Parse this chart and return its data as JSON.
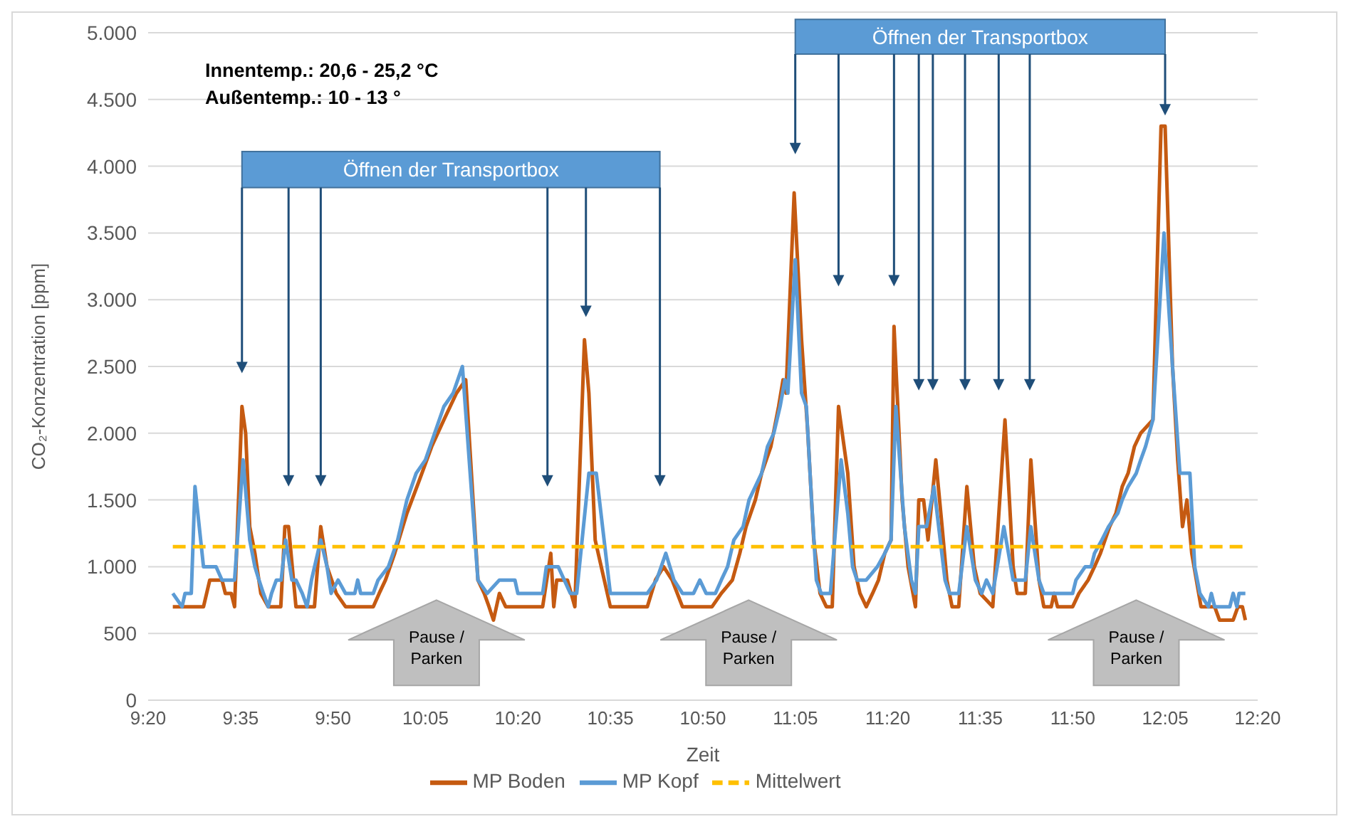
{
  "chart_data": {
    "type": "line",
    "xlabel": "Zeit",
    "ylabel": "CO₂-Konzentration [ppm]",
    "xlim": [
      9.3333,
      12.3333
    ],
    "xticks": [
      {
        "value": 9.3333,
        "label": "9:20"
      },
      {
        "value": 9.5833,
        "label": "9:35"
      },
      {
        "value": 9.8333,
        "label": "9:50"
      },
      {
        "value": 10.0833,
        "label": "10:05"
      },
      {
        "value": 10.3333,
        "label": "10:20"
      },
      {
        "value": 10.5833,
        "label": "10:35"
      },
      {
        "value": 10.8333,
        "label": "10:50"
      },
      {
        "value": 11.0833,
        "label": "11:05"
      },
      {
        "value": 11.3333,
        "label": "11:20"
      },
      {
        "value": 11.5833,
        "label": "11:35"
      },
      {
        "value": 11.8333,
        "label": "11:50"
      },
      {
        "value": 12.0833,
        "label": "12:05"
      },
      {
        "value": 12.3333,
        "label": "12:20"
      }
    ],
    "ylim": [
      0,
      5000
    ],
    "yticks": [
      0,
      500,
      {
        "value": 1000,
        "label": "1.000"
      },
      {
        "value": 1500,
        "label": "1.500"
      },
      {
        "value": 2000,
        "label": "2.000"
      },
      {
        "value": 2500,
        "label": "2.500"
      },
      {
        "value": 3000,
        "label": "3.000"
      },
      {
        "value": 3500,
        "label": "3.500"
      },
      {
        "value": 4000,
        "label": "4.000"
      },
      {
        "value": 4500,
        "label": "4.500"
      },
      {
        "value": 5000,
        "label": "5.000"
      }
    ],
    "grid": "y",
    "legend": "bottom",
    "series": [
      {
        "name": "MP Boden",
        "color": "#c55a11",
        "x": [
          9.4,
          9.483,
          9.5,
          9.533,
          9.542,
          9.558,
          9.567,
          9.587,
          9.597,
          9.608,
          9.622,
          9.638,
          9.658,
          9.692,
          9.703,
          9.713,
          9.733,
          9.783,
          9.8,
          9.817,
          9.842,
          9.867,
          9.942,
          9.958,
          9.975,
          10.0,
          10.033,
          10.067,
          10.1,
          10.133,
          10.167,
          10.192,
          10.225,
          10.242,
          10.255,
          10.267,
          10.283,
          10.3,
          10.4,
          10.422,
          10.43,
          10.438,
          10.467,
          10.487,
          10.513,
          10.525,
          10.542,
          10.583,
          10.683,
          10.705,
          10.727,
          10.75,
          10.778,
          10.858,
          10.883,
          10.913,
          10.933,
          10.95,
          10.975,
          10.992,
          11.017,
          11.038,
          11.05,
          11.058,
          11.08,
          11.1,
          11.117,
          11.133,
          11.15,
          11.167,
          11.183,
          11.2,
          11.225,
          11.242,
          11.258,
          11.275,
          11.292,
          11.308,
          11.325,
          11.342,
          11.35,
          11.372,
          11.388,
          11.408,
          11.417,
          11.43,
          11.442,
          11.463,
          11.48,
          11.493,
          11.507,
          11.525,
          11.547,
          11.567,
          11.583,
          11.617,
          11.65,
          11.672,
          11.683,
          11.705,
          11.72,
          11.742,
          11.755,
          11.775,
          11.783,
          11.792,
          11.833,
          11.85,
          11.875,
          11.892,
          11.908,
          11.933,
          11.95,
          11.967,
          11.983,
          12.0,
          12.017,
          12.05,
          12.072,
          12.083,
          12.103,
          12.117,
          12.13,
          12.142,
          12.155,
          12.18,
          12.217,
          12.23,
          12.267,
          12.28,
          12.292,
          12.3
        ],
        "values": [
          700,
          700,
          900,
          900,
          800,
          800,
          700,
          2200,
          2000,
          1300,
          1100,
          800,
          700,
          700,
          1300,
          1300,
          700,
          700,
          1300,
          1000,
          800,
          700,
          700,
          800,
          900,
          1100,
          1400,
          1650,
          1900,
          2100,
          2300,
          2400,
          900,
          800,
          700,
          600,
          800,
          700,
          700,
          1100,
          700,
          900,
          900,
          700,
          2700,
          2300,
          1200,
          700,
          700,
          900,
          1000,
          900,
          700,
          700,
          800,
          900,
          1100,
          1300,
          1500,
          1700,
          1900,
          2200,
          2400,
          2300,
          3800,
          2700,
          2000,
          1200,
          800,
          700,
          700,
          2200,
          1700,
          1000,
          800,
          700,
          800,
          900,
          1100,
          1200,
          2800,
          1500,
          1000,
          700,
          1500,
          1500,
          1200,
          1800,
          1300,
          900,
          700,
          700,
          1600,
          1000,
          800,
          700,
          2100,
          1000,
          800,
          800,
          1800,
          900,
          700,
          700,
          800,
          700,
          700,
          800,
          900,
          1000,
          1100,
          1300,
          1400,
          1600,
          1700,
          1900,
          2000,
          2100,
          4300,
          4300,
          2500,
          1800,
          1300,
          1500,
          1100,
          700,
          700,
          600,
          600,
          700,
          700,
          600
        ]
      },
      {
        "name": "MP Kopf",
        "color": "#5b9bd5",
        "x": [
          9.4,
          9.425,
          9.433,
          9.45,
          9.46,
          9.483,
          9.517,
          9.533,
          9.567,
          9.59,
          9.608,
          9.622,
          9.633,
          9.645,
          9.658,
          9.667,
          9.68,
          9.693,
          9.705,
          9.722,
          9.733,
          9.75,
          9.763,
          9.775,
          9.8,
          9.817,
          9.828,
          9.847,
          9.867,
          9.892,
          9.9,
          9.908,
          9.942,
          9.955,
          9.983,
          10.008,
          10.033,
          10.058,
          10.083,
          10.108,
          10.133,
          10.158,
          10.183,
          10.225,
          10.25,
          10.283,
          10.325,
          10.333,
          10.4,
          10.41,
          10.442,
          10.475,
          10.492,
          10.525,
          10.545,
          10.583,
          10.683,
          10.708,
          10.733,
          10.755,
          10.778,
          10.808,
          10.825,
          10.842,
          10.867,
          10.883,
          10.9,
          10.917,
          10.942,
          10.958,
          10.975,
          10.992,
          11.008,
          11.025,
          11.042,
          11.055,
          11.063,
          11.083,
          11.1,
          11.113,
          11.127,
          11.14,
          11.153,
          11.178,
          11.207,
          11.225,
          11.238,
          11.25,
          11.275,
          11.305,
          11.325,
          11.342,
          11.355,
          11.378,
          11.397,
          11.408,
          11.417,
          11.438,
          11.458,
          11.475,
          11.488,
          11.5,
          11.525,
          11.547,
          11.57,
          11.587,
          11.6,
          11.617,
          11.647,
          11.672,
          11.705,
          11.72,
          11.742,
          11.755,
          11.833,
          11.842,
          11.867,
          11.883,
          11.892,
          11.912,
          11.93,
          11.955,
          11.967,
          11.983,
          12.005,
          12.017,
          12.03,
          12.05,
          12.08,
          12.103,
          12.123,
          12.15,
          12.163,
          12.177,
          12.2,
          12.208,
          12.217,
          12.258,
          12.267,
          12.277,
          12.283,
          12.3
        ],
        "values": [
          800,
          700,
          800,
          800,
          1600,
          1000,
          1000,
          900,
          900,
          1800,
          1200,
          1000,
          900,
          800,
          700,
          800,
          900,
          900,
          1200,
          900,
          900,
          800,
          700,
          900,
          1200,
          1000,
          800,
          900,
          800,
          800,
          900,
          800,
          800,
          900,
          1000,
          1200,
          1500,
          1700,
          1800,
          2000,
          2200,
          2300,
          2500,
          900,
          800,
          900,
          900,
          800,
          800,
          1000,
          1000,
          800,
          800,
          1700,
          1700,
          800,
          800,
          900,
          1100,
          900,
          800,
          800,
          900,
          800,
          800,
          900,
          1000,
          1200,
          1300,
          1500,
          1600,
          1700,
          1900,
          2000,
          2200,
          2400,
          2300,
          3300,
          2300,
          2200,
          1500,
          900,
          800,
          800,
          1800,
          1400,
          1000,
          900,
          900,
          1000,
          1100,
          1200,
          2200,
          1300,
          900,
          800,
          1300,
          1300,
          1600,
          1200,
          900,
          800,
          800,
          1300,
          900,
          800,
          900,
          800,
          1300,
          900,
          900,
          1300,
          900,
          800,
          800,
          900,
          1000,
          1000,
          1100,
          1200,
          1300,
          1400,
          1500,
          1600,
          1700,
          1800,
          1900,
          2100,
          3500,
          2500,
          1700,
          1700,
          1000,
          800,
          700,
          800,
          700,
          700,
          800,
          700,
          800,
          800
        ]
      },
      {
        "name": "Mittelwert",
        "color": "#ffc000",
        "line_style": "dashed",
        "x": [
          9.4,
          12.3
        ],
        "values": [
          1150,
          1150
        ]
      }
    ],
    "annotations": [
      "Innentemp.: 20,6 - 25,2 °C",
      "Außentemp.: 10 - 13 °",
      "Öffnen der Transportbox",
      "Öffnen der Transportbox",
      "Pause / Parken",
      "Pause / Parken",
      "Pause / Parken"
    ]
  }
}
